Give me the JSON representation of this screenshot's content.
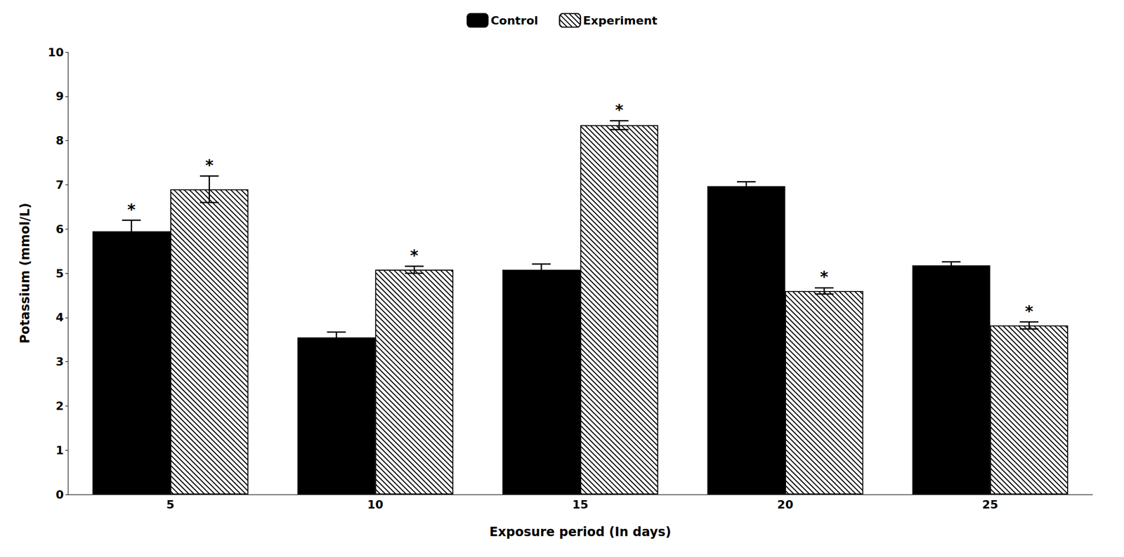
{
  "chart_data": {
    "type": "bar",
    "categories": [
      "5",
      "10",
      "15",
      "20",
      "25"
    ],
    "series": [
      {
        "name": "Control",
        "color": "#000000",
        "values": [
          5.95,
          3.55,
          5.08,
          6.97,
          5.18
        ],
        "errors": [
          0.25,
          0.12,
          0.13,
          0.1,
          0.08
        ],
        "annotations": [
          "*",
          null,
          null,
          null,
          null
        ]
      },
      {
        "name": "Experiment",
        "color": "#ffffff",
        "values": [
          6.9,
          5.08,
          8.35,
          4.6,
          3.82
        ],
        "errors": [
          0.3,
          0.08,
          0.1,
          0.07,
          0.08
        ],
        "annotations": [
          "*",
          "*",
          "*",
          "*",
          "*"
        ]
      }
    ],
    "xlabel": "Exposure period (In days)",
    "ylabel": "Potassium (mmol/L)",
    "ylim": [
      0,
      10
    ],
    "yticks": [
      0,
      1,
      2,
      3,
      4,
      5,
      6,
      7,
      8,
      9,
      10
    ],
    "legend": "top",
    "grid": false
  }
}
